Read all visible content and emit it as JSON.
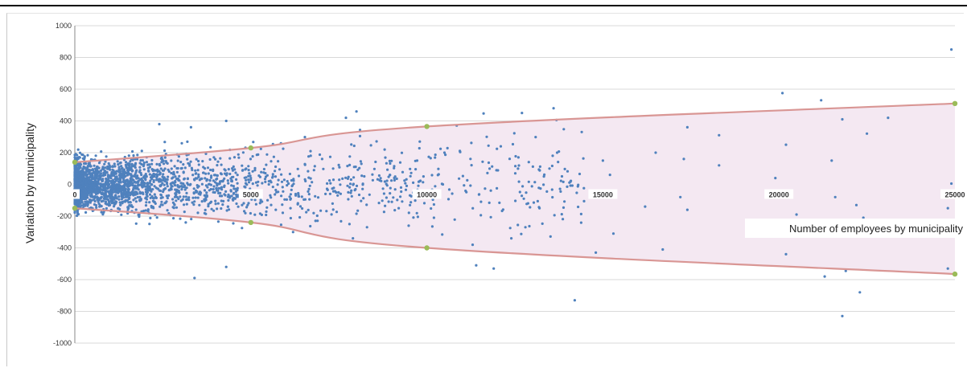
{
  "chart_data": {
    "type": "scatter",
    "title": "",
    "xlabel": "Number of employees by municipality",
    "ylabel": "Variation by municipality",
    "xlim": [
      0,
      25000
    ],
    "ylim": [
      -1000,
      1000
    ],
    "x_ticks": [
      0,
      5000,
      10000,
      15000,
      20000,
      25000
    ],
    "x_tick_labels": [
      "0",
      "5000",
      "10000",
      "15000",
      "20000",
      "25000"
    ],
    "y_ticks": [
      -1000,
      -800,
      -600,
      -400,
      -200,
      0,
      200,
      400,
      600,
      800,
      1000
    ],
    "y_tick_labels": [
      "-1000",
      "-800",
      "-600",
      "-400",
      "-200",
      "0",
      "200",
      "400",
      "600",
      "800",
      "1000"
    ],
    "grid": "horizontal",
    "colors": {
      "points": "#4f81bd",
      "envelope": "#d99694",
      "band_fill": "#f4e8f2",
      "markers": "#9bbb59",
      "grid": "#d9d9d9"
    },
    "envelope_upper_markers": [
      [
        0,
        140
      ],
      [
        5000,
        230
      ],
      [
        10000,
        365
      ],
      [
        25000,
        510
      ]
    ],
    "envelope_lower_markers": [
      [
        0,
        -150
      ],
      [
        5000,
        -240
      ],
      [
        10000,
        -400
      ],
      [
        25000,
        -565
      ]
    ],
    "outlier_points": [
      [
        14200,
        -730
      ],
      [
        21800,
        -830
      ],
      [
        22300,
        -680
      ],
      [
        21900,
        -545
      ],
      [
        24900,
        850
      ],
      [
        20100,
        575
      ],
      [
        21200,
        530
      ],
      [
        21800,
        410
      ],
      [
        13600,
        480
      ],
      [
        12700,
        450
      ],
      [
        8000,
        460
      ],
      [
        7700,
        420
      ],
      [
        3300,
        360
      ],
      [
        4300,
        400
      ],
      [
        2400,
        380
      ],
      [
        3400,
        -590
      ],
      [
        4300,
        -520
      ],
      [
        11400,
        -510
      ],
      [
        11900,
        -530
      ],
      [
        14800,
        -430
      ],
      [
        16700,
        -410
      ],
      [
        15300,
        -310
      ],
      [
        20200,
        -440
      ],
      [
        21300,
        -580
      ],
      [
        24800,
        -530
      ],
      [
        17400,
        360
      ],
      [
        18300,
        310
      ],
      [
        20200,
        250
      ],
      [
        22500,
        320
      ],
      [
        23100,
        420
      ],
      [
        16500,
        200
      ],
      [
        17300,
        160
      ],
      [
        18300,
        120
      ],
      [
        21500,
        150
      ],
      [
        24900,
        5
      ],
      [
        22200,
        -130
      ],
      [
        22400,
        -210
      ],
      [
        21600,
        -80
      ],
      [
        17200,
        -80
      ],
      [
        17400,
        -160
      ],
      [
        15100,
        -60
      ],
      [
        16200,
        -140
      ],
      [
        13700,
        200
      ],
      [
        14400,
        330
      ],
      [
        15000,
        150
      ],
      [
        11700,
        300
      ],
      [
        12100,
        240
      ],
      [
        12600,
        170
      ],
      [
        10500,
        200
      ],
      [
        9800,
        270
      ],
      [
        8800,
        220
      ],
      [
        13200,
        -150
      ],
      [
        12800,
        -270
      ],
      [
        12400,
        -340
      ],
      [
        11300,
        -380
      ],
      [
        10200,
        -210
      ],
      [
        9200,
        -150
      ],
      [
        8300,
        -270
      ],
      [
        7900,
        -340
      ],
      [
        6200,
        -300
      ],
      [
        19900,
        40
      ],
      [
        20500,
        -190
      ],
      [
        24800,
        -150
      ],
      [
        13800,
        -45
      ],
      [
        15200,
        60
      ]
    ]
  }
}
